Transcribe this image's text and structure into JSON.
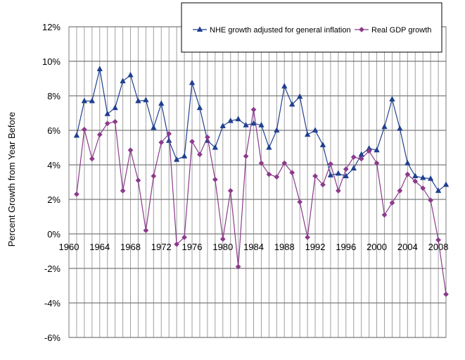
{
  "chart_data": {
    "type": "line",
    "title": "",
    "xlabel": "",
    "ylabel": "Percent Growth from Year Before",
    "xlim": [
      1960,
      2009
    ],
    "ylim": [
      -6,
      12
    ],
    "y_ticks": [
      "-6%",
      "-4%",
      "-2%",
      "0%",
      "2%",
      "4%",
      "6%",
      "8%",
      "10%",
      "12%"
    ],
    "x_ticks": [
      "1960",
      "1964",
      "1968",
      "1972",
      "1976",
      "1980",
      "1984",
      "1988",
      "1992",
      "1996",
      "2000",
      "2004",
      "2008"
    ],
    "grid": true,
    "legend_position": "top-right",
    "x": [
      1961,
      1962,
      1963,
      1964,
      1965,
      1966,
      1967,
      1968,
      1969,
      1970,
      1971,
      1972,
      1973,
      1974,
      1975,
      1976,
      1977,
      1978,
      1979,
      1980,
      1981,
      1982,
      1983,
      1984,
      1985,
      1986,
      1987,
      1988,
      1989,
      1990,
      1991,
      1992,
      1993,
      1994,
      1995,
      1996,
      1997,
      1998,
      1999,
      2000,
      2001,
      2002,
      2003,
      2004,
      2005,
      2006,
      2007,
      2008,
      2009
    ],
    "series": [
      {
        "name": "NHE growth adjusted for general inflation",
        "color": "#1f3f8f",
        "marker": "triangle",
        "values": [
          5.7,
          7.7,
          7.7,
          9.55,
          6.95,
          7.3,
          8.85,
          9.2,
          7.7,
          7.75,
          6.15,
          7.55,
          5.4,
          4.3,
          4.5,
          8.75,
          7.3,
          5.4,
          5.0,
          6.25,
          6.55,
          6.65,
          6.3,
          6.4,
          6.3,
          5.0,
          6.0,
          8.55,
          7.5,
          7.95,
          5.75,
          6.0,
          5.15,
          3.4,
          3.5,
          3.35,
          3.8,
          4.6,
          4.95,
          4.85,
          6.2,
          7.8,
          6.1,
          4.1,
          3.35,
          3.25,
          3.2,
          2.5,
          2.85
        ]
      },
      {
        "name": "Real GDP growth",
        "color": "#8b3a8b",
        "marker": "diamond",
        "values": [
          2.3,
          6.05,
          4.35,
          5.75,
          6.4,
          6.5,
          2.5,
          4.85,
          3.1,
          0.2,
          3.35,
          5.3,
          5.8,
          -0.6,
          -0.2,
          5.35,
          4.6,
          5.6,
          3.15,
          -0.3,
          2.5,
          -1.9,
          4.5,
          7.2,
          4.1,
          3.45,
          3.3,
          4.1,
          3.55,
          1.85,
          -0.2,
          3.35,
          2.85,
          4.05,
          2.5,
          3.75,
          4.45,
          4.35,
          4.8,
          4.1,
          1.1,
          1.8,
          2.5,
          3.45,
          3.05,
          2.65,
          1.95,
          -0.35,
          -3.5
        ]
      }
    ]
  }
}
